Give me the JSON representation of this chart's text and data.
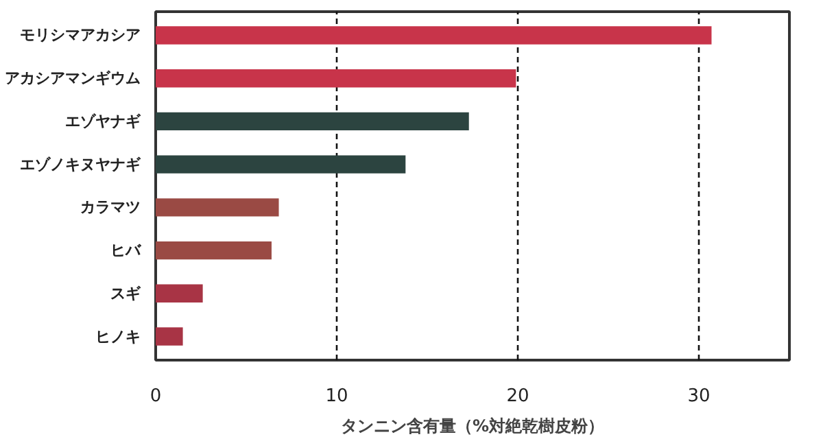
{
  "chart_data": {
    "type": "bar",
    "orientation": "horizontal",
    "xlabel": "タンニン含有量（%対絶乾樹皮粉）",
    "categories": [
      "モリシマアカシア",
      "アカシアマンギウム",
      "エゾヤナギ",
      "エゾノキヌヤナギ",
      "カラマツ",
      "ヒバ",
      "スギ",
      "ヒノキ"
    ],
    "values": [
      30.7,
      19.9,
      17.3,
      13.8,
      6.8,
      6.4,
      2.6,
      1.5
    ],
    "colors": [
      "#c8344a",
      "#c8344a",
      "#2c4440",
      "#2c4440",
      "#9a4a44",
      "#9a4a44",
      "#a83445",
      "#a83445"
    ],
    "xlim": [
      0,
      35
    ],
    "xticks": [
      0,
      10,
      20,
      30
    ],
    "grid": "x",
    "line_style": "dashed"
  }
}
